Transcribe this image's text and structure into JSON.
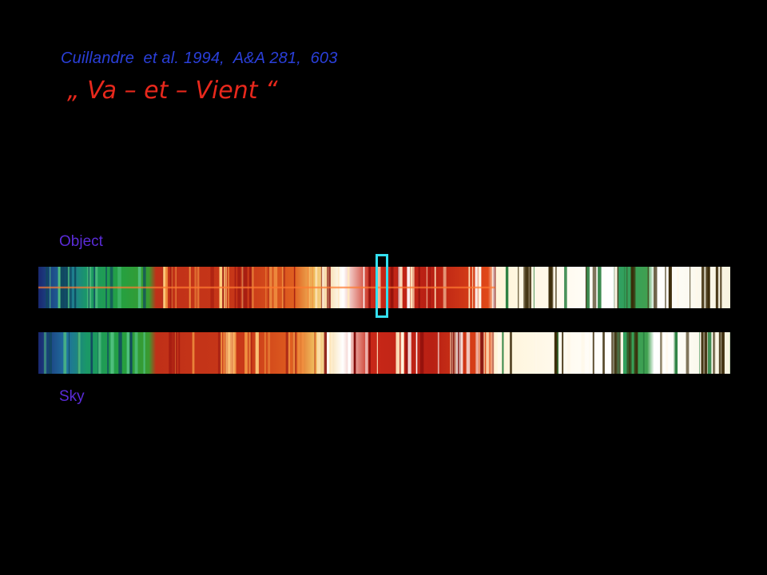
{
  "slide": {
    "citation": "Cuillandre  et al. 1994,  A&A 281,  603",
    "subtitle": "„ Va – et – Vient “",
    "object_label": "Object",
    "sky_label": "Sky"
  },
  "colors": {
    "background": "#000000",
    "citation": "#2a3fd9",
    "subtitle": "#e8281c",
    "labels": "#5a2bd8",
    "highlight": "#33e0f0"
  },
  "spectra": {
    "gradient": [
      "#1a2a80",
      "#1f6fa0",
      "#1fa05a",
      "#2aa83a",
      "#c83a18",
      "#d8401a",
      "#f0a030",
      "#ffffff",
      "#c02818",
      "#e85020",
      "#fff8e0",
      "#ffffff",
      "#40a060",
      "#ffffff",
      "#f8f0d0"
    ]
  }
}
